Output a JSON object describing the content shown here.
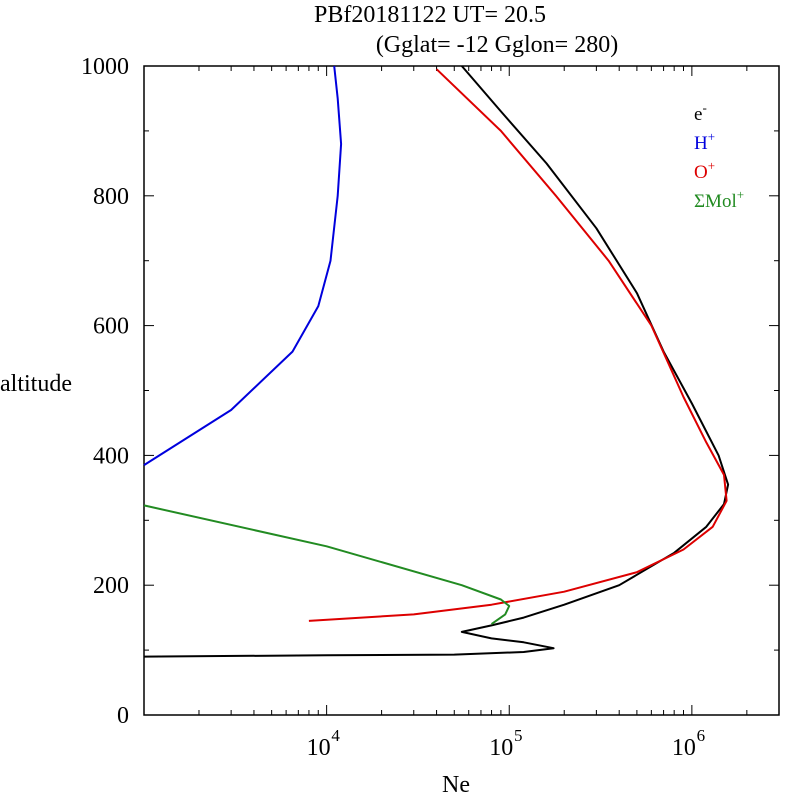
{
  "chart_data": {
    "type": "line",
    "title": "PBf20181122   UT=  20.5",
    "subtitle": "(Gglat= -12   Gglon=  280)",
    "xlabel": "Ne",
    "ylabel": "altitude",
    "x_scale": "log",
    "xlim": [
      1000,
      3000000
    ],
    "ylim": [
      0,
      1000
    ],
    "x_ticks": [
      {
        "base": "10",
        "exp": "4",
        "value": 10000
      },
      {
        "base": "10",
        "exp": "5",
        "value": 100000
      },
      {
        "base": "10",
        "exp": "6",
        "value": 1000000
      }
    ],
    "y_ticks": [
      "0",
      "200",
      "400",
      "600",
      "800",
      "1000"
    ],
    "y_tick_values": [
      0,
      200,
      400,
      600,
      800,
      1000
    ],
    "legend": {
      "placement": "top-right",
      "entries": [
        {
          "base": "e",
          "sup": "-",
          "color": "#000000"
        },
        {
          "base": "H",
          "sup": "+",
          "color": "#0000dd"
        },
        {
          "base": "O",
          "sup": "+",
          "color": "#dd0000"
        },
        {
          "base": "ΣMol",
          "sup": "+",
          "color": "#228b22"
        }
      ]
    },
    "series": [
      {
        "key": "electrons",
        "color": "#000000",
        "points": [
          [
            1000,
            90
          ],
          [
            10000,
            92
          ],
          [
            50000,
            93
          ],
          [
            120000,
            97
          ],
          [
            175000,
            103
          ],
          [
            120000,
            112
          ],
          [
            80000,
            118
          ],
          [
            55000,
            128
          ],
          [
            80000,
            138
          ],
          [
            120000,
            150
          ],
          [
            200000,
            170
          ],
          [
            400000,
            200
          ],
          [
            800000,
            250
          ],
          [
            1200000,
            290
          ],
          [
            1500000,
            325
          ],
          [
            1580000,
            355
          ],
          [
            1400000,
            400
          ],
          [
            1000000,
            480
          ],
          [
            700000,
            560
          ],
          [
            500000,
            650
          ],
          [
            300000,
            750
          ],
          [
            160000,
            850
          ],
          [
            90000,
            930
          ],
          [
            55000,
            1000
          ]
        ]
      },
      {
        "key": "H+",
        "color": "#0000dd",
        "points": [
          [
            1000,
            385
          ],
          [
            3000,
            470
          ],
          [
            6500,
            560
          ],
          [
            9000,
            630
          ],
          [
            10500,
            700
          ],
          [
            11500,
            800
          ],
          [
            12000,
            880
          ],
          [
            11500,
            950
          ],
          [
            11000,
            1000
          ]
        ]
      },
      {
        "key": "O+",
        "color": "#dd0000",
        "points": [
          [
            8000,
            145
          ],
          [
            30000,
            155
          ],
          [
            80000,
            170
          ],
          [
            200000,
            190
          ],
          [
            500000,
            220
          ],
          [
            900000,
            255
          ],
          [
            1300000,
            290
          ],
          [
            1550000,
            330
          ],
          [
            1500000,
            370
          ],
          [
            1200000,
            420
          ],
          [
            900000,
            490
          ],
          [
            600000,
            600
          ],
          [
            350000,
            700
          ],
          [
            180000,
            800
          ],
          [
            90000,
            900
          ],
          [
            40000,
            995
          ]
        ]
      },
      {
        "key": "Mol+",
        "color": "#228b22",
        "points": [
          [
            1000,
            323
          ],
          [
            10000,
            260
          ],
          [
            55000,
            200
          ],
          [
            90000,
            178
          ],
          [
            100000,
            168
          ],
          [
            95000,
            155
          ],
          [
            80000,
            140
          ]
        ]
      }
    ]
  }
}
